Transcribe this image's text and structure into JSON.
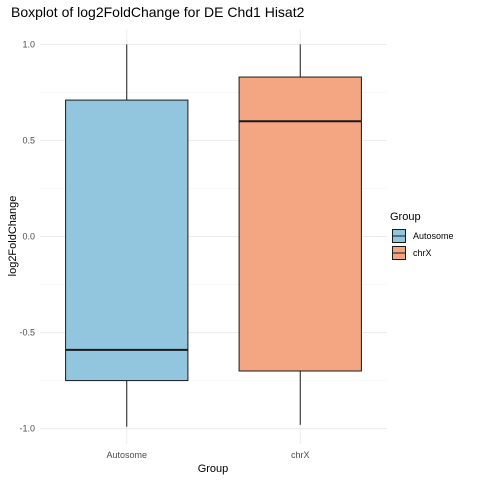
{
  "chart_data": {
    "type": "boxplot",
    "title": "Boxplot of log2FoldChange for DE Chd1 Hisat2",
    "xlabel": "Group",
    "ylabel": "log2FoldChange",
    "categories": [
      "Autosome",
      "chrX"
    ],
    "yticks": [
      -1.0,
      -0.5,
      0.0,
      0.5,
      1.0
    ],
    "ytick_labels": [
      "-1.0",
      "-0.5",
      "0.0",
      "0.5",
      "1.0"
    ],
    "ylim": [
      -1.08,
      1.08
    ],
    "grid": true,
    "legend": {
      "title": "Group",
      "placement": "right",
      "entries": [
        "Autosome",
        "chrX"
      ]
    },
    "boxes": [
      {
        "name": "Autosome",
        "min": -0.99,
        "q1": -0.75,
        "median": -0.59,
        "q3": 0.71,
        "max": 1.0,
        "color": "#92c5de"
      },
      {
        "name": "chrX",
        "min": -0.98,
        "q1": -0.7,
        "median": 0.6,
        "q3": 0.83,
        "max": 1.0,
        "color": "#f4a582"
      }
    ]
  }
}
